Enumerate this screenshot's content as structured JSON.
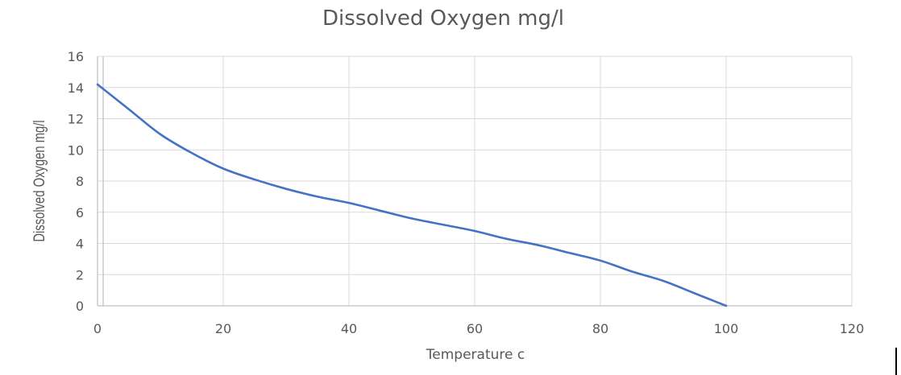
{
  "chart_data": {
    "type": "line",
    "title": "Dissolved Oxygen mg/l",
    "xlabel": "Temperature c",
    "ylabel": "Dissolved Oxygen mg/l",
    "xlim": [
      0,
      120
    ],
    "ylim": [
      0,
      16
    ],
    "x_ticks": [
      0,
      20,
      40,
      60,
      80,
      100,
      120
    ],
    "y_ticks": [
      0,
      2,
      4,
      6,
      8,
      10,
      12,
      14,
      16
    ],
    "grid": true,
    "legend": "none",
    "series": [
      {
        "color": "#4472c4",
        "x": [
          0,
          5,
          10,
          15,
          20,
          25,
          30,
          35,
          40,
          45,
          50,
          55,
          60,
          65,
          70,
          75,
          80,
          85,
          90,
          95,
          100
        ],
        "y": [
          14.2,
          12.6,
          11.0,
          9.8,
          8.8,
          8.1,
          7.5,
          7.0,
          6.6,
          6.1,
          5.6,
          5.2,
          4.8,
          4.3,
          3.9,
          3.4,
          2.9,
          2.2,
          1.6,
          0.8,
          0.0
        ]
      }
    ]
  }
}
